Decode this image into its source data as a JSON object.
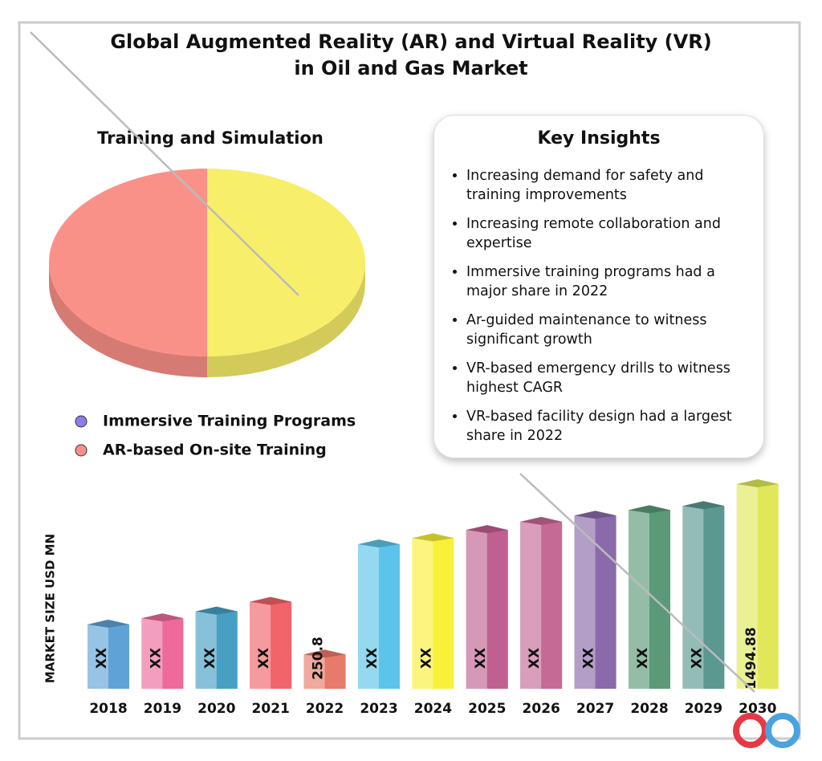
{
  "title": [
    "Global Augmented Reality (AR) and Virtual Reality (VR)",
    "in Oil and Gas Market"
  ],
  "chart_data": [
    {
      "type": "pie",
      "title": "Training and Simulation",
      "labels": [
        "Immersive Training Programs",
        "AR-based On-site Training"
      ],
      "values": [
        50,
        50
      ],
      "colors": [
        "#f7ef6a",
        "#fa9188"
      ],
      "legend_colors": [
        "#8b7cf0",
        "#fa9188"
      ]
    },
    {
      "type": "bar",
      "y_label": "MARKET SIZE USD MN",
      "categories": [
        "2018",
        "2019",
        "2020",
        "2021",
        "2022",
        "2023",
        "2024",
        "2025",
        "2026",
        "2027",
        "2028",
        "2029",
        "2030"
      ],
      "values": [
        470,
        515,
        565,
        635,
        250.8,
        1055,
        1100,
        1160,
        1220,
        1265,
        1305,
        1335,
        1494.88
      ],
      "value_labels": [
        "XX",
        "XX",
        "XX",
        "XX",
        "250.8",
        "XX",
        "XX",
        "XX",
        "XX",
        "XX",
        "XX",
        "XX",
        "1494.88"
      ],
      "colors": [
        "#5fa3d6",
        "#ee6a9a",
        "#47a0c4",
        "#f0646a",
        "#e77a6a",
        "#5cc4ea",
        "#f9f03a",
        "#c06090",
        "#c56a95",
        "#8a6aaa",
        "#5a9a78",
        "#5a9890",
        "#e0e85a"
      ]
    }
  ],
  "key_insights": {
    "title": "Key Insights",
    "items": [
      "Increasing demand for safety and training improvements",
      "Increasing remote collaboration and expertise",
      "Immersive training programs had a major share in 2022",
      "Ar-guided maintenance to witness significant growth",
      "VR-based emergency drills to witness highest CAGR",
      "VR-based facility design had a largest share in 2022"
    ]
  }
}
